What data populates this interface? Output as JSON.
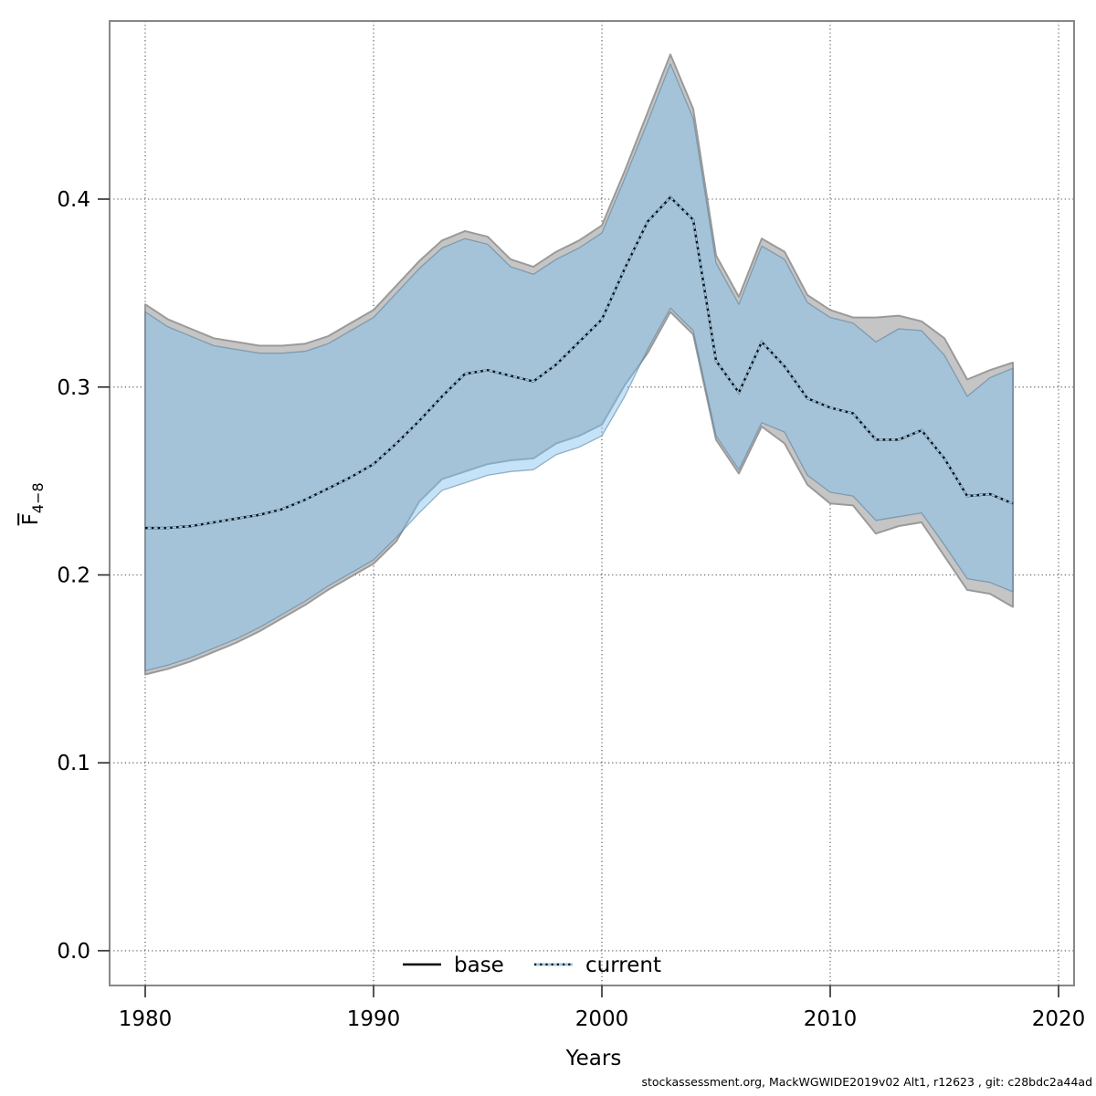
{
  "chart_data": {
    "type": "area",
    "title": "",
    "xlabel": "Years",
    "ylabel": "F(bar) 4-8",
    "ylabel_main": "F",
    "ylabel_sub": "4−8",
    "x_ticks": [
      1980,
      1990,
      2000,
      2010,
      2020
    ],
    "y_ticks": [
      0.0,
      0.1,
      0.2,
      0.3,
      0.4
    ],
    "xlim": [
      1978.44,
      2020.68
    ],
    "ylim": [
      -0.0185,
      0.4948
    ],
    "grid": "dotted",
    "legend_position": "bottom-center-inside",
    "legend": [
      {
        "label": "base",
        "style": "solid",
        "color": "#000000"
      },
      {
        "label": "current",
        "style": "dotted",
        "color": "#9bc7e2"
      }
    ],
    "years": [
      1980,
      1981,
      1982,
      1983,
      1984,
      1985,
      1986,
      1987,
      1988,
      1989,
      1990,
      1991,
      1992,
      1993,
      1994,
      1995,
      1996,
      1997,
      1998,
      1999,
      2000,
      2001,
      2002,
      2003,
      2004,
      2005,
      2006,
      2007,
      2008,
      2009,
      2010,
      2011,
      2012,
      2013,
      2014,
      2015,
      2016,
      2017,
      2018
    ],
    "series": [
      {
        "name": "base",
        "kind": "band+line",
        "line_style": "solid",
        "line_color": "#000000",
        "band_fill": "#c5c5c5",
        "band_stroke": "#9a9a9a",
        "center": [
          0.225,
          0.225,
          0.226,
          0.228,
          0.23,
          0.232,
          0.235,
          0.24,
          0.246,
          0.252,
          0.259,
          0.27,
          0.282,
          0.295,
          0.307,
          0.309,
          0.306,
          0.303,
          0.312,
          0.324,
          0.336,
          0.363,
          0.388,
          0.401,
          0.389,
          0.314,
          0.297,
          0.324,
          0.311,
          0.294,
          0.289,
          0.286,
          0.272,
          0.272,
          0.277,
          0.262,
          0.242,
          0.243,
          0.238
        ],
        "lo": [
          0.147,
          0.15,
          0.154,
          0.159,
          0.164,
          0.17,
          0.177,
          0.184,
          0.192,
          0.199,
          0.206,
          0.218,
          0.239,
          0.251,
          0.255,
          0.259,
          0.261,
          0.262,
          0.27,
          0.274,
          0.28,
          0.301,
          0.318,
          0.34,
          0.328,
          0.272,
          0.254,
          0.279,
          0.27,
          0.248,
          0.238,
          0.237,
          0.222,
          0.226,
          0.228,
          0.21,
          0.192,
          0.19,
          0.183
        ],
        "hi": [
          0.344,
          0.336,
          0.331,
          0.326,
          0.324,
          0.322,
          0.322,
          0.323,
          0.327,
          0.334,
          0.341,
          0.354,
          0.367,
          0.378,
          0.383,
          0.38,
          0.368,
          0.364,
          0.372,
          0.378,
          0.386,
          0.415,
          0.446,
          0.477,
          0.448,
          0.37,
          0.348,
          0.379,
          0.372,
          0.349,
          0.341,
          0.337,
          0.337,
          0.338,
          0.335,
          0.326,
          0.304,
          0.309,
          0.313
        ]
      },
      {
        "name": "current",
        "kind": "band+line",
        "line_style": "dotted",
        "line_color": "#0b0b14",
        "line_under_color": "#9bc7e2",
        "band_fill": "rgba(125,193,239,0.45)",
        "band_stroke": "rgba(85,120,148,0.55)",
        "center": [
          0.225,
          0.225,
          0.226,
          0.228,
          0.23,
          0.232,
          0.235,
          0.24,
          0.246,
          0.252,
          0.259,
          0.27,
          0.282,
          0.295,
          0.307,
          0.309,
          0.306,
          0.303,
          0.312,
          0.324,
          0.336,
          0.363,
          0.388,
          0.401,
          0.389,
          0.314,
          0.297,
          0.324,
          0.311,
          0.294,
          0.289,
          0.286,
          0.272,
          0.272,
          0.277,
          0.262,
          0.242,
          0.243,
          0.238
        ],
        "lo": [
          0.149,
          0.152,
          0.156,
          0.161,
          0.166,
          0.172,
          0.179,
          0.186,
          0.194,
          0.201,
          0.208,
          0.22,
          0.233,
          0.245,
          0.249,
          0.253,
          0.255,
          0.256,
          0.264,
          0.268,
          0.274,
          0.295,
          0.32,
          0.342,
          0.33,
          0.274,
          0.256,
          0.281,
          0.276,
          0.253,
          0.244,
          0.242,
          0.229,
          0.231,
          0.233,
          0.216,
          0.198,
          0.196,
          0.191
        ],
        "hi": [
          0.34,
          0.332,
          0.327,
          0.322,
          0.32,
          0.318,
          0.318,
          0.319,
          0.323,
          0.33,
          0.337,
          0.35,
          0.363,
          0.374,
          0.379,
          0.376,
          0.364,
          0.36,
          0.368,
          0.374,
          0.382,
          0.411,
          0.441,
          0.472,
          0.443,
          0.366,
          0.344,
          0.375,
          0.368,
          0.345,
          0.337,
          0.334,
          0.324,
          0.331,
          0.33,
          0.317,
          0.295,
          0.305,
          0.31
        ]
      }
    ],
    "colors": {
      "grid": "#4d4d4d",
      "border": "#878787",
      "tick": "#2b2b2b",
      "text": "#000000",
      "band_overlap": "#a5c3d8",
      "current_only_sliver": "#c6e1f0"
    }
  },
  "footer": {
    "credit": "stockassessment.org, MackWGWIDE2019v02  Alt1, r12623 , git: c28bdc2a44ad"
  }
}
